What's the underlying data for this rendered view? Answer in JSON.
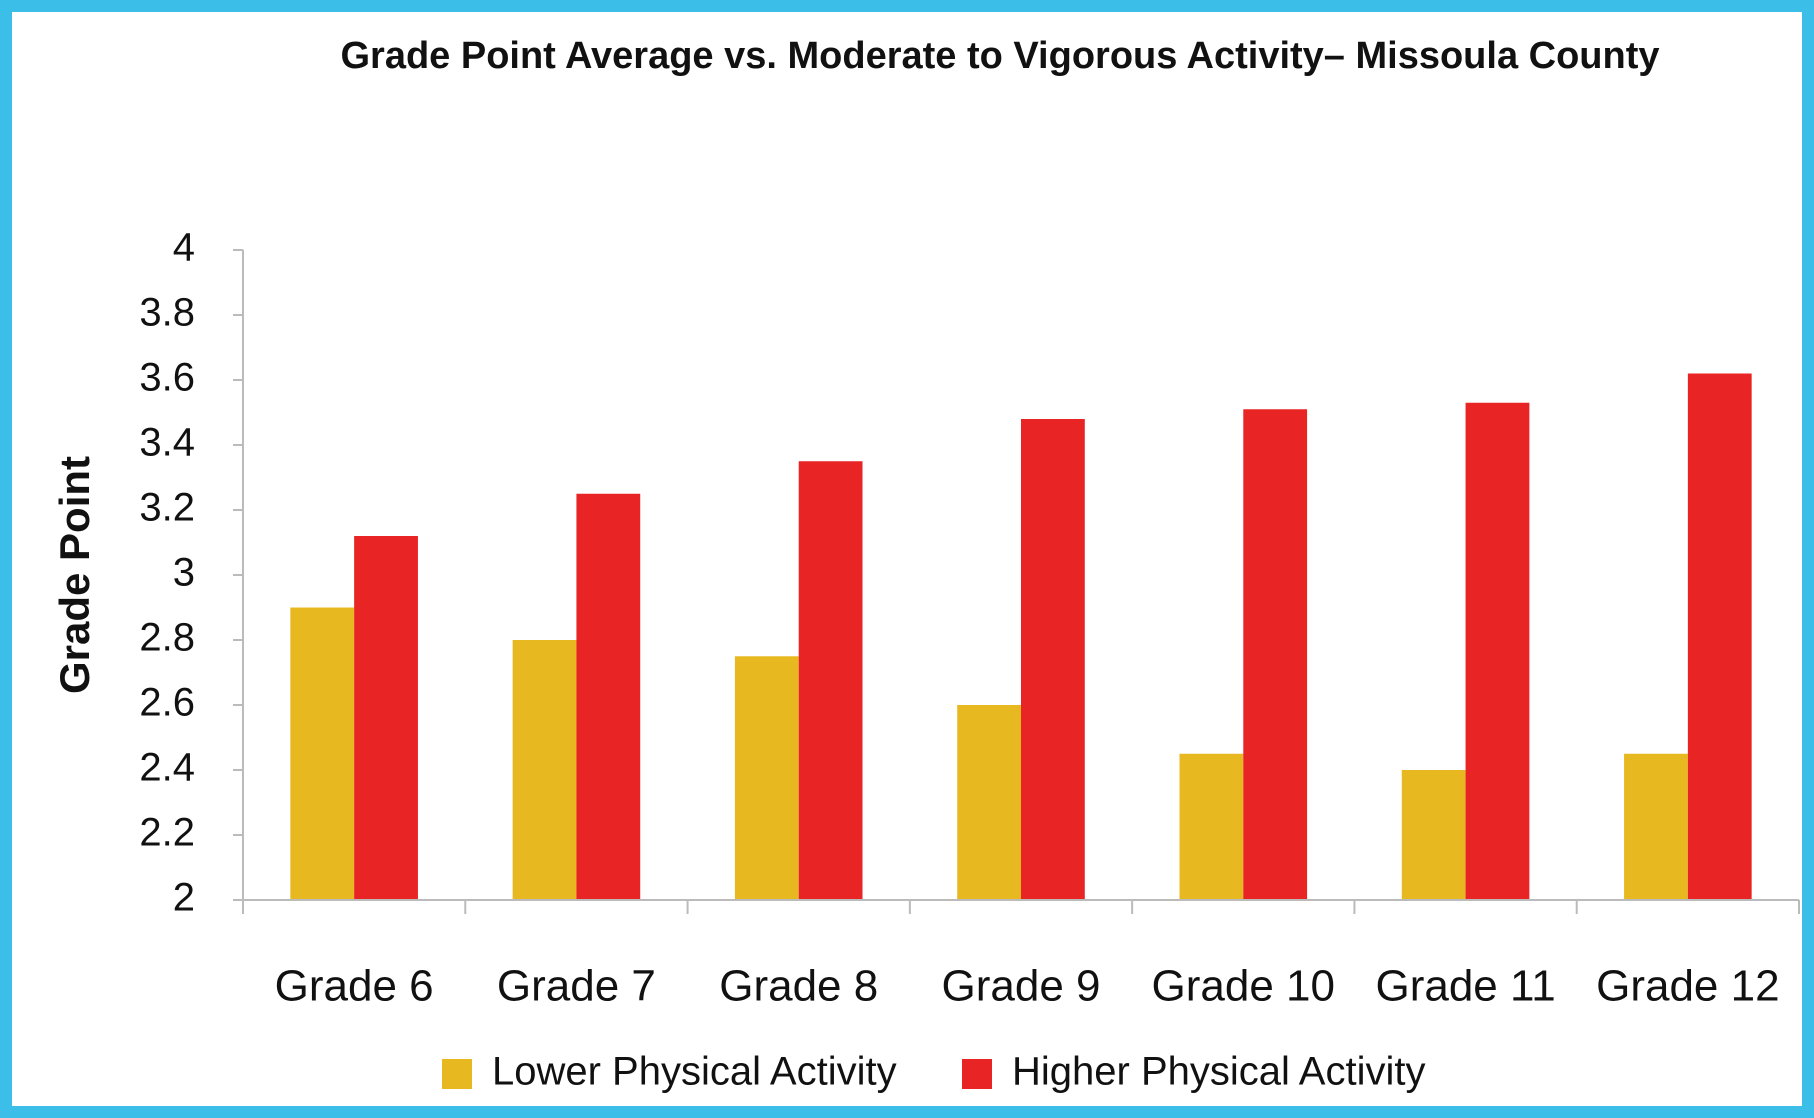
{
  "chart_data": {
    "type": "bar",
    "title": "Grade Point Average vs. Moderate to Vigorous Activity– Missoula County",
    "y_label": "Grade Point",
    "categories": [
      "Grade 6",
      "Grade 7",
      "Grade 8",
      "Grade 9",
      "Grade 10",
      "Grade 11",
      "Grade 12"
    ],
    "series": [
      {
        "name": "Lower Physical Activity",
        "color": "#e8b820",
        "values": [
          2.9,
          2.8,
          2.75,
          2.6,
          2.45,
          2.4,
          2.45
        ]
      },
      {
        "name": "Higher Physical Activity",
        "color": "#e82424",
        "values": [
          3.12,
          3.25,
          3.35,
          3.48,
          3.51,
          3.53,
          3.62
        ]
      }
    ],
    "ylim": [
      2,
      4
    ],
    "yticks": [
      2,
      2.2,
      2.4,
      2.6,
      2.8,
      3,
      3.2,
      3.4,
      3.6,
      3.8,
      4
    ],
    "grid": false,
    "legend": "bottom"
  }
}
